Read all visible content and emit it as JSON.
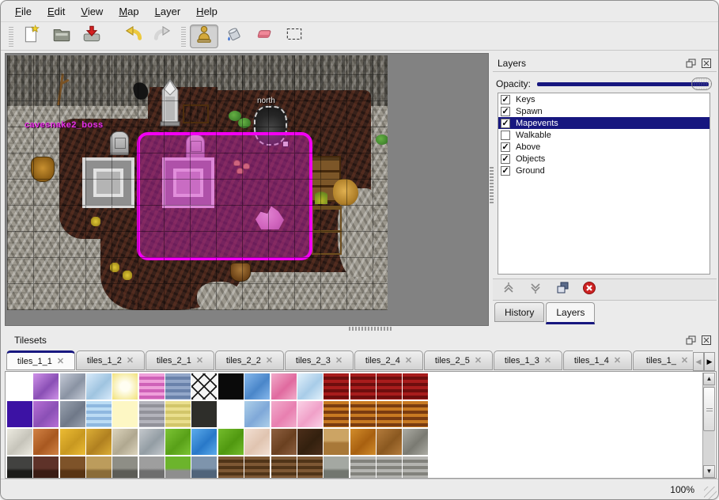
{
  "menu": {
    "items": [
      "File",
      "Edit",
      "View",
      "Map",
      "Layer",
      "Help"
    ]
  },
  "toolbar": {
    "groups": [
      {
        "handle": true,
        "buttons": [
          {
            "name": "new-map-button",
            "icon": "new-file-icon",
            "selected": false
          },
          {
            "name": "open-map-button",
            "icon": "open-folder-icon",
            "selected": false
          },
          {
            "name": "save-map-button",
            "icon": "save-icon",
            "selected": false
          }
        ]
      },
      {
        "handle": false,
        "buttons": [
          {
            "name": "undo-button",
            "icon": "undo-icon",
            "selected": false
          },
          {
            "name": "redo-button",
            "icon": "redo-icon",
            "selected": false
          }
        ]
      },
      {
        "handle": true,
        "buttons": [
          {
            "name": "stamp-tool-button",
            "icon": "stamp-tool-icon",
            "selected": true
          },
          {
            "name": "fill-tool-button",
            "icon": "fill-tool-icon",
            "selected": false
          },
          {
            "name": "eraser-tool-button",
            "icon": "eraser-tool-icon",
            "selected": false
          },
          {
            "name": "select-tool-button",
            "icon": "select-tool-icon",
            "selected": false
          }
        ]
      }
    ]
  },
  "map": {
    "boss_label": "cavesnake2_boss",
    "north_label": "north",
    "selection_color": "#f200f2"
  },
  "layers_panel": {
    "title": "Layers",
    "opacity_label": "Opacity:",
    "opacity_value": 100,
    "layers": [
      {
        "name": "Keys",
        "checked": true,
        "selected": false
      },
      {
        "name": "Spawn",
        "checked": true,
        "selected": false
      },
      {
        "name": "Mapevents",
        "checked": true,
        "selected": true
      },
      {
        "name": "Walkable",
        "checked": false,
        "selected": false
      },
      {
        "name": "Above",
        "checked": true,
        "selected": false
      },
      {
        "name": "Objects",
        "checked": true,
        "selected": false
      },
      {
        "name": "Ground",
        "checked": true,
        "selected": false
      }
    ],
    "footer_buttons": [
      {
        "name": "raise-layer-button",
        "icon": "raise-layer-icon"
      },
      {
        "name": "lower-layer-button",
        "icon": "lower-layer-icon"
      },
      {
        "name": "duplicate-layer-button",
        "icon": "duplicate-layer-icon"
      },
      {
        "name": "delete-layer-button",
        "icon": "delete-layer-icon"
      }
    ],
    "tabs": [
      {
        "label": "History",
        "active": false
      },
      {
        "label": "Layers",
        "active": true
      }
    ]
  },
  "tilesets_panel": {
    "title": "Tilesets",
    "tabs": [
      {
        "label": "tiles_1_1",
        "active": true
      },
      {
        "label": "tiles_1_2",
        "active": false
      },
      {
        "label": "tiles_2_1",
        "active": false
      },
      {
        "label": "tiles_2_2",
        "active": false
      },
      {
        "label": "tiles_2_3",
        "active": false
      },
      {
        "label": "tiles_2_4",
        "active": false
      },
      {
        "label": "tiles_2_5",
        "active": false
      },
      {
        "label": "tiles_1_3",
        "active": false
      },
      {
        "label": "tiles_1_4",
        "active": false
      },
      {
        "label": "tiles_1_",
        "active": false
      }
    ],
    "palette_rows": [
      [
        [
          "#ffffff",
          "#ffffff",
          "s"
        ],
        [
          "#cf92e8",
          "#8a4fb5",
          "d"
        ],
        [
          "#c4cad6",
          "#8a93a3",
          "d"
        ],
        [
          "#d8eafa",
          "#9fc4e0",
          "d"
        ],
        [
          "#fffef2",
          "#f2e27a",
          "g"
        ],
        [
          "#efa0da",
          "#cf62b8",
          "h"
        ],
        [
          "#93a7c9",
          "#6a82ab",
          "h"
        ],
        [
          "#f4f4f4",
          "#1a1a1a",
          "x"
        ],
        [
          "#0a0a0a",
          "#000000",
          "s"
        ],
        [
          "#86b8ec",
          "#4a86c9",
          "d"
        ],
        [
          "#f2acca",
          "#e06a9f",
          "d"
        ],
        [
          "#e2f1fb",
          "#a8cce8",
          "d"
        ],
        [
          "#a81c1c",
          "#6e0e0e",
          "h"
        ],
        [
          "#a81c1c",
          "#6e0e0e",
          "h"
        ],
        [
          "#a81c1c",
          "#6e0e0e",
          "h"
        ],
        [
          "#a81c1c",
          "#6e0e0e",
          "h"
        ]
      ],
      [
        [
          "#3c12a4",
          "#2a0b78",
          "s"
        ],
        [
          "#b76fd6",
          "#8a4fb5",
          "d"
        ],
        [
          "#9aa3b0",
          "#6f7888",
          "d"
        ],
        [
          "#bcdcf4",
          "#8fb8e0",
          "h"
        ],
        [
          "#fdf7c4",
          "#f5eca0",
          "s"
        ],
        [
          "#b4b4bc",
          "#92929a",
          "h"
        ],
        [
          "#eadf8e",
          "#d2c66a",
          "h"
        ],
        [
          "#2e2e2a",
          "#17171a",
          "s"
        ],
        [
          "#ffffff",
          "#ffffff",
          "s"
        ],
        [
          "#aed0ea",
          "#7fa8d8",
          "d"
        ],
        [
          "#f2accc",
          "#e87fb0",
          "d"
        ],
        [
          "#fad2e6",
          "#f0a0c8",
          "d"
        ],
        [
          "#c87a22",
          "#7a3c10",
          "h"
        ],
        [
          "#c87a22",
          "#7a3c10",
          "h"
        ],
        [
          "#c87a22",
          "#7a3c10",
          "h"
        ],
        [
          "#c87a22",
          "#7a3c10",
          "h"
        ]
      ],
      [
        [
          "#eceae0",
          "#c6c4ba",
          "d"
        ],
        [
          "#d28244",
          "#a85820",
          "d"
        ],
        [
          "#ecbc34",
          "#c89820",
          "d"
        ],
        [
          "#dcae36",
          "#b08020",
          "d"
        ],
        [
          "#dcd4bc",
          "#b0a890",
          "d"
        ],
        [
          "#c4c8cc",
          "#939da4",
          "d"
        ],
        [
          "#7cc434",
          "#58a018",
          "d"
        ],
        [
          "#5cacec",
          "#2878c8",
          "d"
        ],
        [
          "#74bc2c",
          "#509810",
          "d"
        ],
        [
          "#f2dfd2",
          "#e0c4b0",
          "d"
        ],
        [
          "#8e6040",
          "#6a4020",
          "d"
        ],
        [
          "#4c2e1a",
          "#33200e",
          "d"
        ],
        [
          "#cca464",
          "#a87838",
          "v"
        ],
        [
          "#d28c2a",
          "#a86010",
          "d"
        ],
        [
          "#b47c3c",
          "#8a5820",
          "d"
        ],
        [
          "#acaca4",
          "#7a7a72",
          "d"
        ]
      ],
      [
        [
          "#424240",
          "#1a1a18",
          "v"
        ],
        [
          "#5e3229",
          "#3a1c14",
          "v"
        ],
        [
          "#7e5329",
          "#583414",
          "v"
        ],
        [
          "#bc9c5c",
          "#8a6c38",
          "v"
        ],
        [
          "#8e8e86",
          "#5c5c56",
          "v"
        ],
        [
          "#9e9e9e",
          "#6e6e6e",
          "v"
        ],
        [
          "#6cb42c",
          "#8e8e8e",
          "v"
        ],
        [
          "#7e94ac",
          "#50647a",
          "v"
        ],
        [
          "#7e5834",
          "#503418",
          "h"
        ],
        [
          "#7e5834",
          "#503418",
          "h"
        ],
        [
          "#7e5834",
          "#503418",
          "h"
        ],
        [
          "#7e5834",
          "#503418",
          "h"
        ],
        [
          "#a4a8a2",
          "#72766f",
          "v"
        ],
        [
          "#b4b4b0",
          "#82827c",
          "h"
        ],
        [
          "#b4b4b0",
          "#82827c",
          "h"
        ],
        [
          "#b4b4b0",
          "#82827c",
          "h"
        ]
      ]
    ]
  },
  "status": {
    "zoom": "100%"
  },
  "colors": {
    "accent": "#17177f",
    "selection_magenta": "#f200f2",
    "boss_text": "#e431e4"
  }
}
